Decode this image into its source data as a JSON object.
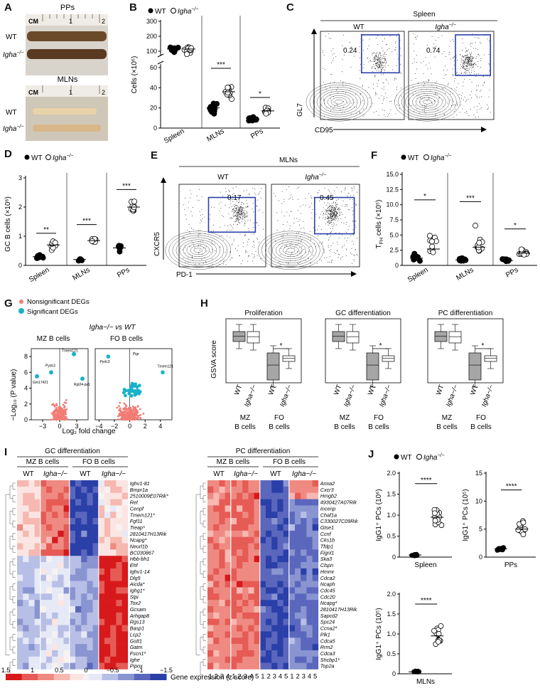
{
  "panels": [
    "A",
    "B",
    "C",
    "D",
    "E",
    "F",
    "G",
    "H",
    "I",
    "J"
  ],
  "legend": {
    "wt": "WT",
    "ko": "Igha",
    "ko_sup": "−/−"
  },
  "A": {
    "pps": "PPs",
    "mlns": "MLNs",
    "ruler": [
      "CM",
      "1",
      "2"
    ],
    "wt": "WT",
    "ko": "Igha",
    "ko_sup": "−/−"
  },
  "B": {
    "ylabel": "Cells (×10⁶)",
    "groups": [
      "Spleen",
      "MLNs",
      "PPs"
    ],
    "ticks_top": [
      "100",
      "200",
      "300"
    ],
    "ticks_bot": [
      "0",
      "20",
      "40",
      "60"
    ],
    "sig": [
      "***",
      "*"
    ]
  },
  "C": {
    "title": "Spleen",
    "wt": "WT",
    "ko": "Igha",
    "ko_sup": "−/−",
    "xlabel": "CD95",
    "ylabel": "GL7",
    "gate_wt": "0.24",
    "gate_ko": "0.74"
  },
  "D": {
    "ylabel": "GC B cells (×10⁶)",
    "groups": [
      "Spleen",
      "MLNs",
      "PPs"
    ],
    "ticks": [
      "0",
      "1",
      "2",
      "3"
    ],
    "sig": [
      "**",
      "***",
      "***"
    ]
  },
  "E": {
    "title": "MLNs",
    "wt": "WT",
    "ko": "Igha",
    "ko_sup": "−/−",
    "xlabel": "PD-1",
    "ylabel": "CXCR5",
    "gate_wt": "0.17",
    "gate_ko": "0.45"
  },
  "F": {
    "ylabel": "T",
    "ylabel_sub": "FH",
    "ylabel_rest": " cells (×10⁵)",
    "groups": [
      "Spleen",
      "MLNs",
      "PPs"
    ],
    "ticks": [
      "0",
      "2.5",
      "5.0",
      "7.5",
      "10.0",
      "12.5",
      "15.0"
    ],
    "sig": [
      "*",
      "***",
      "*"
    ]
  },
  "G": {
    "legend_ns": "Nonsignificant DEGs",
    "legend_s": "Significant DEGs",
    "title": "Igha−/− vs WT",
    "mz": "MZ B cells",
    "fo": "FO B cells",
    "ylabel": "−Log₁₀ (P value)",
    "xlabel": "Log₂ fold change",
    "mz_xticks": [
      "−3",
      "0",
      "3"
    ],
    "fo_xticks": [
      "−4",
      "−2",
      "0",
      "2",
      "4"
    ],
    "yticks": [
      "0",
      "2",
      "4",
      "6",
      "8"
    ],
    "mz_genes": [
      "Tmem121",
      "Pydc3",
      "Gm17421",
      "Rpl24-ps1"
    ],
    "fo_genes": [
      "Pydc3",
      "Pigr",
      "Tmem121"
    ]
  },
  "H": {
    "ylabel": "GSVA score",
    "titles": [
      "Proliferation",
      "GC differentiation",
      "PC differentiation"
    ],
    "wt": "WT",
    "ko": "Igha−/−",
    "mz": "MZ",
    "fo": "FO",
    "bcells": "B cells",
    "sig": "*"
  },
  "I": {
    "gc_title": "GC differentiation",
    "pc_title": "PC differentiation",
    "mz": "MZ B cells",
    "fo": "FO B cells",
    "wt": "WT",
    "ko": "Igha−/−",
    "cols": [
      "1",
      "2",
      "3",
      "4",
      "1",
      "2",
      "3",
      "4",
      "5",
      "1",
      "2",
      "3",
      "4",
      "5",
      "1",
      "2",
      "3",
      "4",
      "5"
    ],
    "gc_genes": [
      "Ighv1-81",
      "Bmpr1a",
      "2510009E07Rik*",
      "Ret",
      "Cenpf",
      "Tmem121*",
      "Fgf11",
      "Treap*",
      "2810417H13Rik",
      "Ncapg*",
      "Neurl1b",
      "BC030867",
      "Hbb-bh1",
      "Ehf",
      "Ighv1-14",
      "Dlg5",
      "Aicda*",
      "Ighg1*",
      "Slpi",
      "Tox2",
      "Gcsam",
      "Arhgap8",
      "Rgs13",
      "Basp1",
      "Lcp2",
      "Gstt1",
      "Gatm",
      "Fscn1*",
      "Ighe",
      "Pipox"
    ],
    "pc_genes": [
      "Anxa2",
      "Cxcr3",
      "Hmgb2",
      "4930427A07Rik",
      "Incenp",
      "Chaf1a",
      "C330027C09Rik",
      "Gtse1",
      "Ccnf",
      "Cks1b",
      "Tfdp1",
      "Fignl1",
      "Ska3",
      "Clspn",
      "Hmmr",
      "Cdca2",
      "Ncaph",
      "Cdc45",
      "Cdc20",
      "Ncapg*",
      "2810417H13Rik",
      "Sapcd2",
      "Spc24",
      "Ccna2*",
      "Plk1",
      "Cdca5",
      "Rrm2",
      "Cdca3",
      "Shcbp1*",
      "Top2a"
    ],
    "scale": [
      "1.5",
      "1",
      "0.5",
      "0",
      "−0.5",
      "−1",
      "−1.5"
    ],
    "scale_label": "Gene expression (z score)"
  },
  "J": {
    "spleen": "Spleen",
    "pps": "PPs",
    "mlns": "MLNs",
    "ylabel6": "IgG1⁺ PCs (10⁶)",
    "ylabel5": "IgG1⁺ PCs (10⁵)",
    "ticks_sp": [
      "0",
      "0.5",
      "1.0",
      "1.5",
      "2.0"
    ],
    "ticks_pp": [
      "0",
      "5",
      "10",
      "15"
    ],
    "ticks_ml": [
      "0",
      "0.5",
      "1.0",
      "1.5",
      "2.0"
    ],
    "sig": "****"
  },
  "colors": {
    "blue": "#2b3fa8",
    "red": "#d7191c",
    "cyan": "#18b3c9",
    "salmon": "#f27c74",
    "gray": "#a6a6a6"
  }
}
